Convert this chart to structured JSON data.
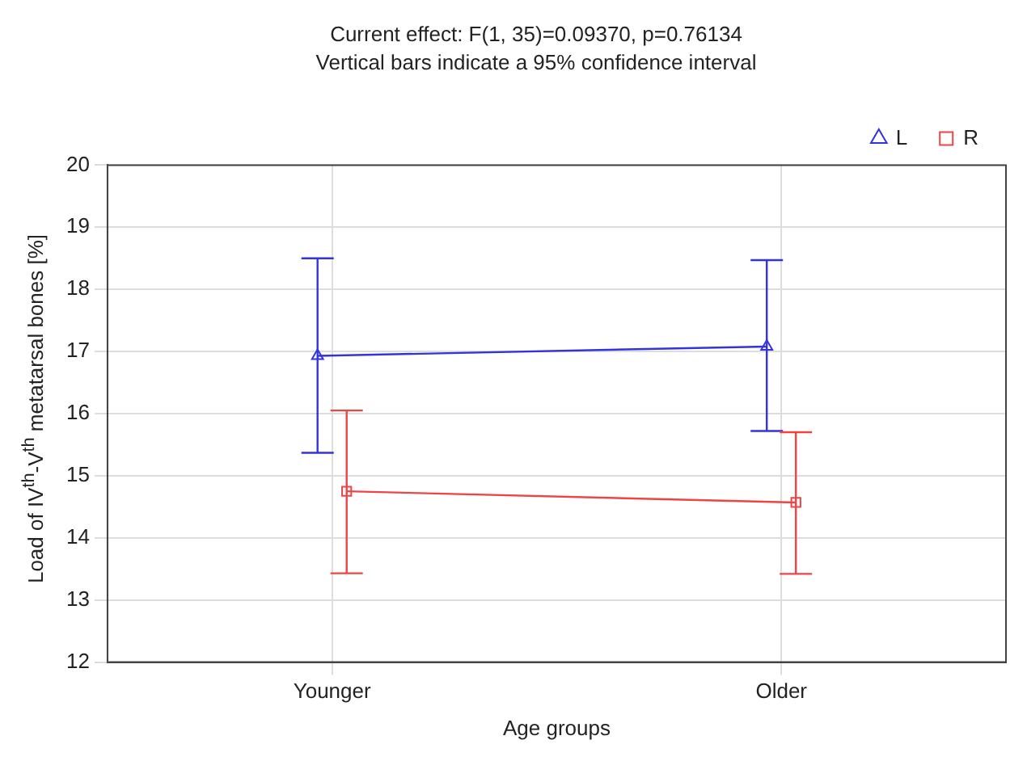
{
  "chart_data": {
    "type": "line",
    "title": "Current effect: F(1, 35)=0.09370, p=0.76134",
    "subtitle": "Vertical bars indicate a 95% confidence interval",
    "xlabel": "Age groups",
    "ylabel": "Load of IV$^{th}$-V$^{th}$ metatarsal bones  [%]",
    "categories": [
      "Younger",
      "Older"
    ],
    "series": [
      {
        "name": "L",
        "color": "#3333dd",
        "marker": "triangle",
        "values": [
          16.93,
          17.08
        ],
        "errors": [
          [
            15.37,
            18.5
          ],
          [
            15.72,
            18.47
          ]
        ]
      },
      {
        "name": "R",
        "color": "#ee4444",
        "marker": "square",
        "values": [
          14.75,
          14.57
        ],
        "errors": [
          [
            13.43,
            16.05
          ],
          [
            13.42,
            15.7
          ]
        ]
      }
    ],
    "ylim": [
      12,
      20
    ],
    "yticks": [
      12,
      13,
      14,
      15,
      16,
      17,
      18,
      19,
      20
    ],
    "grid": true,
    "legend": "top right",
    "line_style": "solid"
  }
}
